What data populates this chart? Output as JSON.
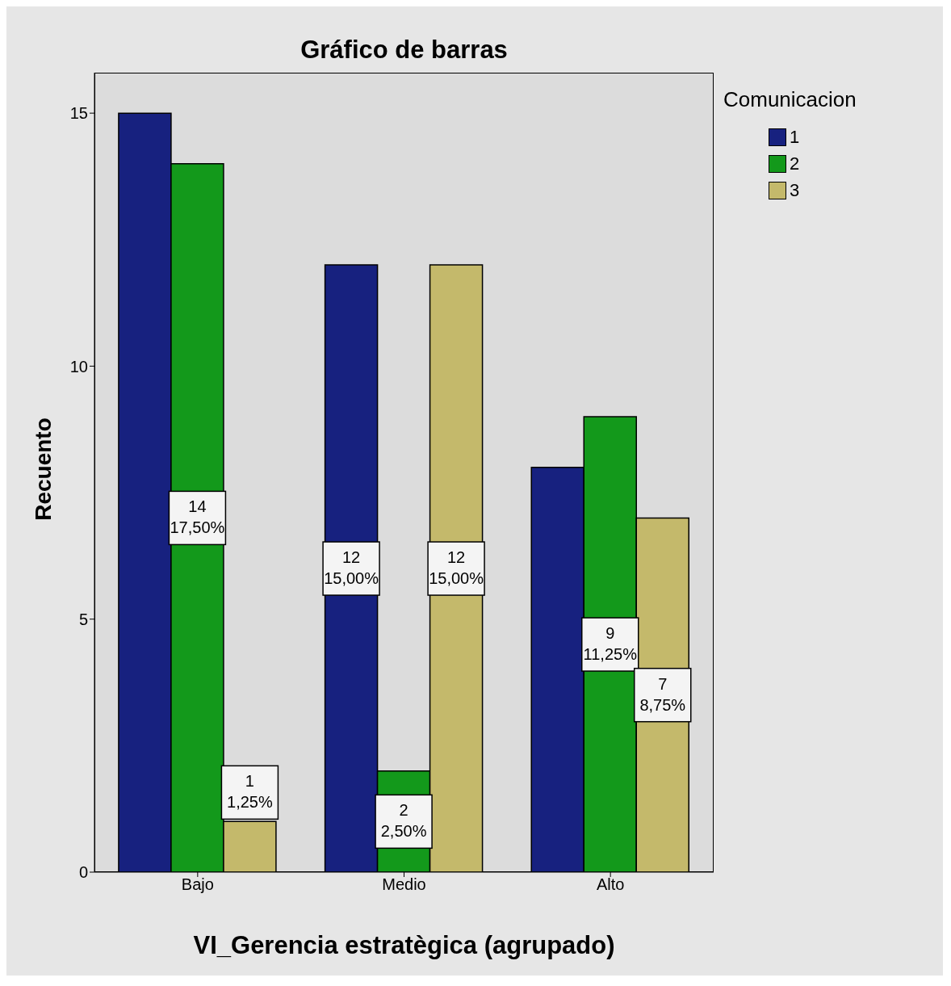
{
  "chart_data": {
    "type": "bar",
    "title": "Gráfico de barras",
    "xlabel": "VI_Gerencia estratègica (agrupado)",
    "ylabel": "Recuento",
    "legend_title": "Comunicacion",
    "legend": "top right",
    "categories": [
      "Bajo",
      "Medio",
      "Alto"
    ],
    "ylim": [
      0,
      15.8
    ],
    "yticks": [
      0,
      5,
      10,
      15
    ],
    "series": [
      {
        "name": "1",
        "color": "#17217f",
        "values": [
          15,
          12,
          8
        ],
        "value_labels": [
          null,
          "12\n15,00%",
          null
        ]
      },
      {
        "name": "2",
        "color": "#13991b",
        "values": [
          14,
          2,
          9
        ],
        "value_labels": [
          "14\n17,50%",
          "2\n2,50%",
          "9\n11,25%"
        ]
      },
      {
        "name": "3",
        "color": "#c4b96b",
        "values": [
          1,
          12,
          7
        ],
        "value_labels": [
          "1\n1,25%",
          "12\n15,00%",
          "7\n8,75%"
        ]
      }
    ]
  }
}
